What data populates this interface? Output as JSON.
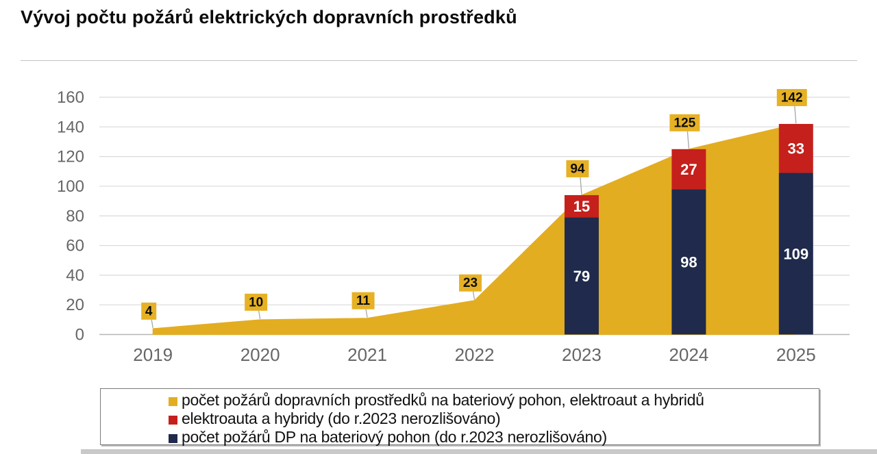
{
  "header": {
    "title": "Vývoj počtu požárů elektrických dopravních prostředků"
  },
  "chart_data": {
    "type": "combo (area + stacked bar)",
    "categories": [
      "2019",
      "2020",
      "2021",
      "2022",
      "2023",
      "2024",
      "2025"
    ],
    "area_series": {
      "name": "počet požárů dopravních prostředků na bateriový pohon, elektroaut a hybridů",
      "values": [
        4,
        10,
        11,
        23,
        94,
        125,
        142
      ],
      "color": "#e3ad22"
    },
    "bar_series": [
      {
        "name": "počet požárů DP na bateriový pohon (do r.2023 nerozlišováno)",
        "values": [
          null,
          null,
          null,
          null,
          79,
          98,
          109
        ],
        "color": "#1f2a4c",
        "label_color": "#ffffff"
      },
      {
        "name": "elektroauta a hybridy (do r.2023 nerozlišováno)",
        "values": [
          null,
          null,
          null,
          null,
          15,
          27,
          33
        ],
        "color": "#c5201c",
        "label_color": "#ffffff"
      }
    ],
    "point_labels": [
      "4",
      "10",
      "11",
      "23",
      "94",
      "125",
      "142"
    ],
    "point_label_box_color": "#e6b125",
    "point_label_text_color": "#0d0d0d",
    "ylim": [
      0,
      160
    ],
    "ytick_step": 20,
    "grid": true,
    "axis_text_color": "#666666",
    "gridline_color": "#d9d9d9",
    "baseline_color": "#b5b5b5",
    "connector_color": "#a6a6a6",
    "legend_position": "bottom",
    "title": "Vývoj počtu požárů elektrických dopravních prostředků"
  },
  "legend": {
    "items": [
      {
        "label": "počet požárů dopravních prostředků na bateriový pohon, elektroaut a hybridů",
        "color": "#e3ad22"
      },
      {
        "label": "elektroauta a hybridy (do r.2023 nerozlišováno)",
        "color": "#c5201c"
      },
      {
        "label": "počet požárů DP na bateriový pohon (do r.2023 nerozlišováno)",
        "color": "#1f2a4c"
      }
    ]
  }
}
